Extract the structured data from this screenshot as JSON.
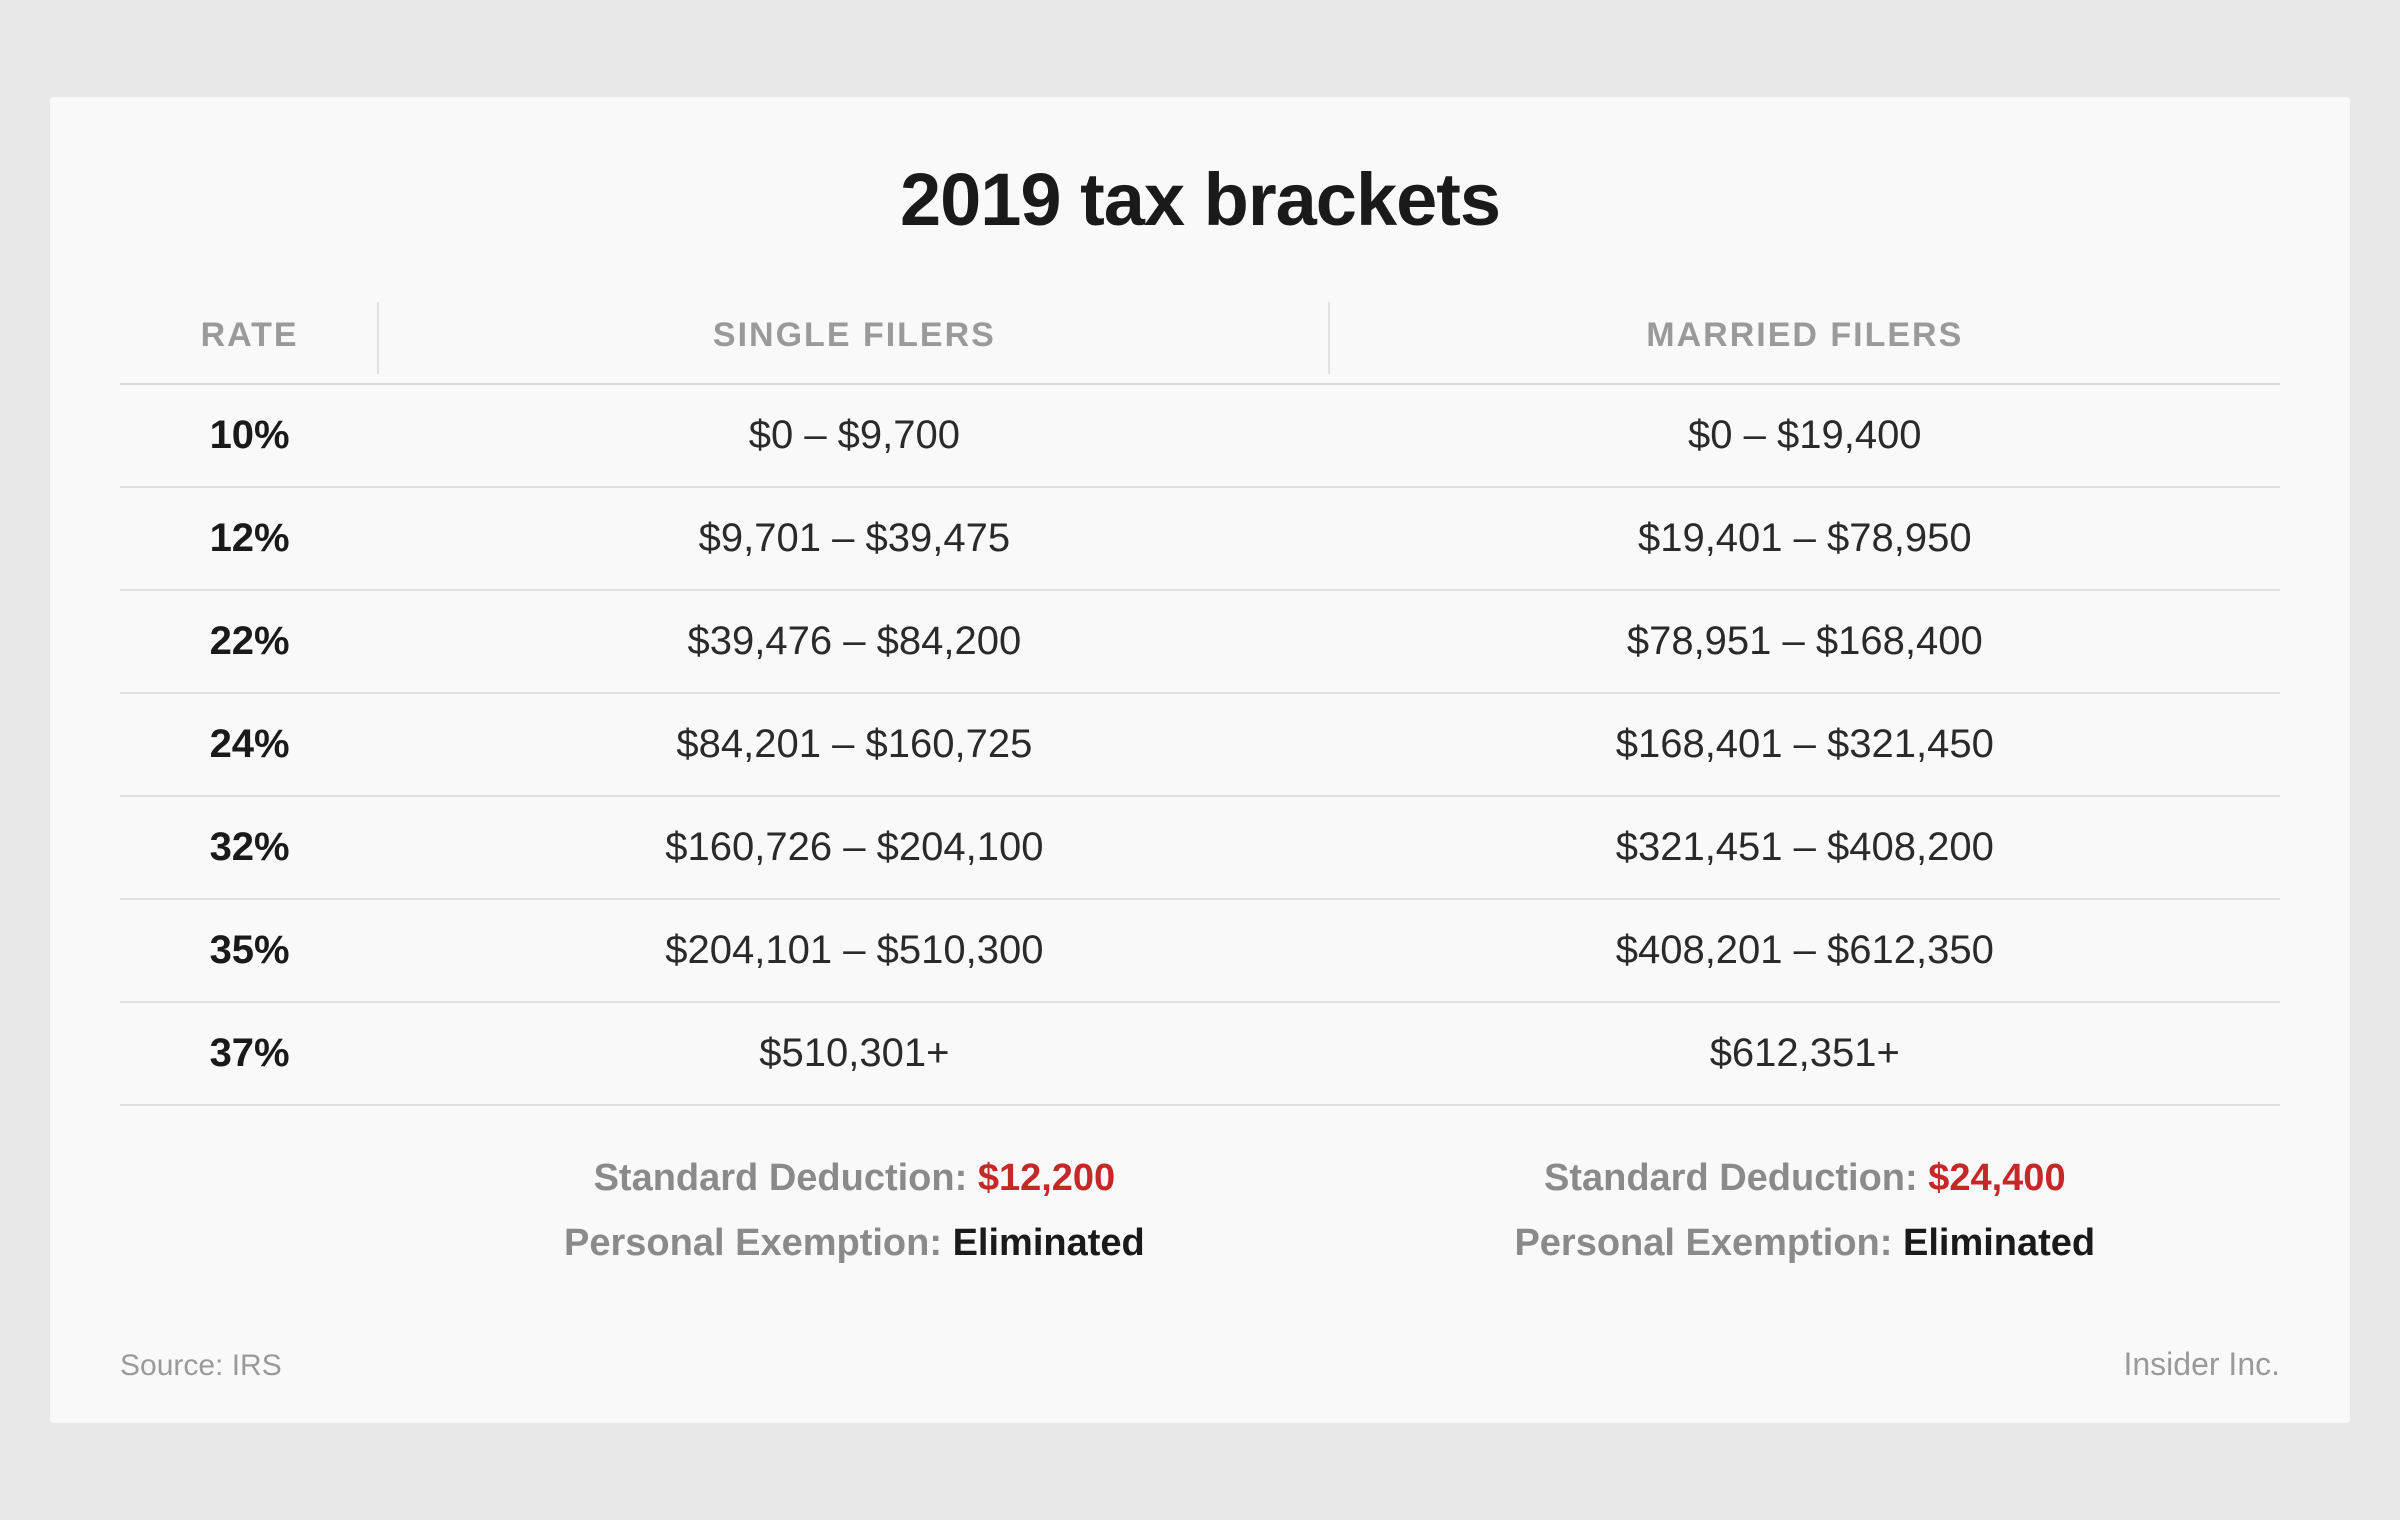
{
  "title": "2019 tax brackets",
  "columns": {
    "rate": "RATE",
    "single": "SINGLE FILERS",
    "married": "MARRIED FILERS"
  },
  "rows": [
    {
      "rate": "10%",
      "single": "$0 – $9,700",
      "married": "$0 – $19,400"
    },
    {
      "rate": "12%",
      "single": "$9,701 – $39,475",
      "married": "$19,401 – $78,950"
    },
    {
      "rate": "22%",
      "single": "$39,476 – $84,200",
      "married": "$78,951 – $168,400"
    },
    {
      "rate": "24%",
      "single": "$84,201 – $160,725",
      "married": "$168,401 – $321,450"
    },
    {
      "rate": "32%",
      "single": "$160,726 – $204,100",
      "married": "$321,451 – $408,200"
    },
    {
      "rate": "35%",
      "single": "$204,101 – $510,300",
      "married": "$408,201 – $612,350"
    },
    {
      "rate": "37%",
      "single": "$510,301+",
      "married": "$612,351+"
    }
  ],
  "footer": {
    "single": {
      "deduction_label": "Standard Deduction: ",
      "deduction_value": "$12,200",
      "exemption_label": "Personal Exemption: ",
      "exemption_value": "Eliminated"
    },
    "married": {
      "deduction_label": "Standard Deduction: ",
      "deduction_value": "$24,400",
      "exemption_label": "Personal Exemption: ",
      "exemption_value": "Eliminated"
    }
  },
  "source": "Source: IRS",
  "attribution": "Insider Inc.",
  "style": {
    "background": "#f9f9f9",
    "title_color": "#1a1a1a",
    "header_color": "#9a9a9a",
    "text_color": "#2a2a2a",
    "accent_red": "#c62828",
    "border_color": "#e0e0e0"
  }
}
